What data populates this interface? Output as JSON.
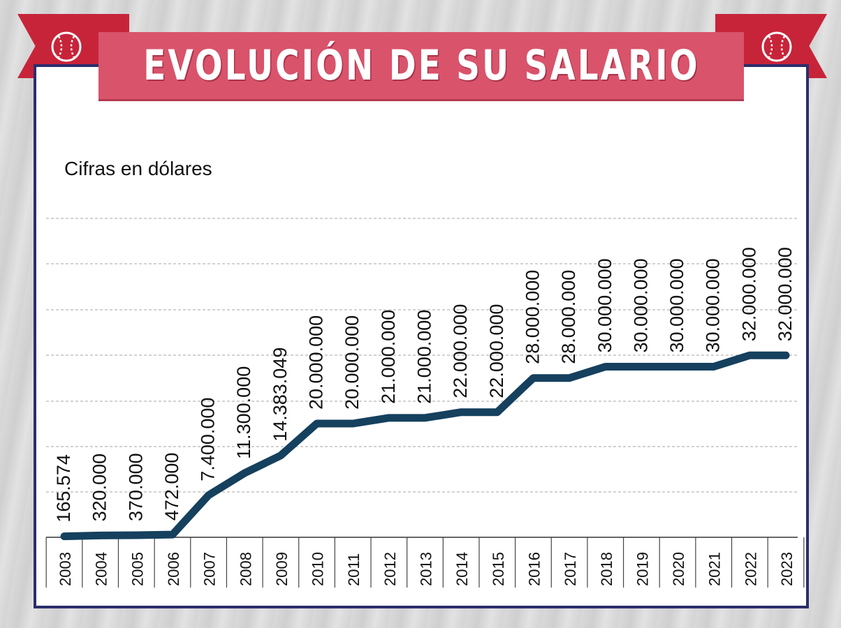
{
  "title": "EVOLUCIÓN DE SU SALARIO",
  "colors": {
    "line": "#15405e",
    "banner": "#d9536b",
    "flag": "#c7243a",
    "frame": "#2b2f6b",
    "grid": "#b8b8b8",
    "text": "#111111"
  },
  "icons": {
    "left": "baseball-icon",
    "right": "baseball-icon"
  },
  "chart_data": {
    "type": "line",
    "title": "EVOLUCIÓN DE SU SALARIO",
    "subtitle": "Cifras en dólares",
    "xlabel": "",
    "ylabel": "",
    "ylim": [
      0,
      35000000
    ],
    "grid": true,
    "categories": [
      "2003",
      "2004",
      "2005",
      "2006",
      "2007",
      "2008",
      "2009",
      "2010",
      "2011",
      "2012",
      "2013",
      "2014",
      "2015",
      "2016",
      "2017",
      "2018",
      "2019",
      "2020",
      "2021",
      "2022",
      "2023"
    ],
    "series": [
      {
        "name": "Salario",
        "values": [
          165574,
          320000,
          370000,
          472000,
          7400000,
          11300000,
          14383049,
          20000000,
          20000000,
          21000000,
          21000000,
          22000000,
          22000000,
          28000000,
          28000000,
          30000000,
          30000000,
          30000000,
          30000000,
          32000000,
          32000000
        ],
        "labels": [
          "165.574",
          "320.000",
          "370.000",
          "472.000",
          "7.400.000",
          "11.300.000",
          "14.383.049",
          "20.000.000",
          "20.000.000",
          "21.000.000",
          "21.000.000",
          "22.000.000",
          "22.000.000",
          "28.000.000",
          "28.000.000",
          "30.000.000",
          "30.000.000",
          "30.000.000",
          "30.000.000",
          "32.000.000",
          "32.000.000"
        ]
      }
    ]
  }
}
